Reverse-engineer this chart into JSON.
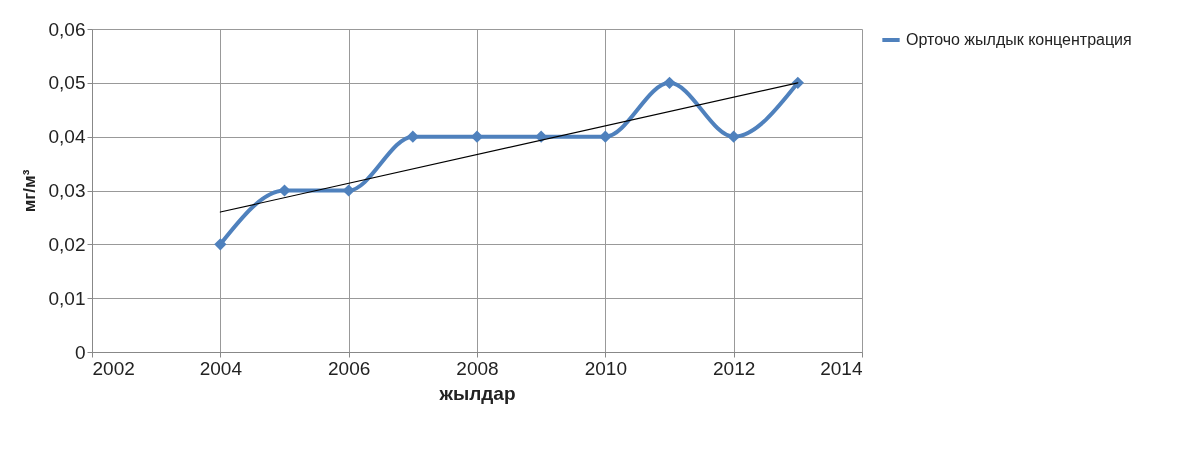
{
  "chart_data": {
    "type": "line",
    "xlabel": "жылдар",
    "ylabel": "мг/м³",
    "x": [
      2004,
      2005,
      2006,
      2007,
      2008,
      2009,
      2010,
      2011,
      2012,
      2013
    ],
    "series": [
      {
        "name": "Орточо жылдык концентрация",
        "color": "#4f81bd",
        "marker": "diamond",
        "values": [
          0.02,
          0.03,
          0.03,
          0.04,
          0.04,
          0.04,
          0.04,
          0.05,
          0.04,
          0.05
        ]
      },
      {
        "type": "line",
        "color": "#000000",
        "marker": "none",
        "x": [
          2004,
          2013
        ],
        "values": [
          0.026,
          0.05
        ]
      }
    ],
    "xlim": [
      2002,
      2014
    ],
    "xticks": [
      2002,
      2004,
      2006,
      2008,
      2010,
      2012,
      2014
    ],
    "ylim": [
      0,
      0.06
    ],
    "yticks": [
      {
        "value": 0,
        "label": "0"
      },
      {
        "value": 0.01,
        "label": "0,01"
      },
      {
        "value": 0.02,
        "label": "0,02"
      },
      {
        "value": 0.03,
        "label": "0,03"
      },
      {
        "value": 0.04,
        "label": "0,04"
      },
      {
        "value": 0.05,
        "label": "0,05"
      },
      {
        "value": 0.06,
        "label": "0,06"
      }
    ],
    "grid": true,
    "legend": "right"
  }
}
